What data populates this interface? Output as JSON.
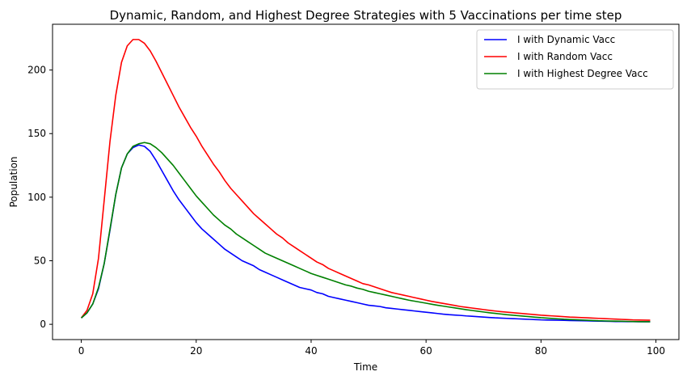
{
  "chart_data": {
    "type": "line",
    "title": "Dynamic, Random, and Highest Degree Strategies with 5 Vaccinations per time step",
    "xlabel": "Time",
    "ylabel": "Population",
    "xlim": [
      -5,
      104
    ],
    "ylim": [
      -12,
      236
    ],
    "xticks": [
      0,
      20,
      40,
      60,
      80,
      100
    ],
    "yticks": [
      0,
      50,
      100,
      150,
      200
    ],
    "grid": false,
    "legend_position": "top-right",
    "x": [
      0,
      1,
      2,
      3,
      4,
      5,
      6,
      7,
      8,
      9,
      10,
      11,
      12,
      13,
      14,
      15,
      16,
      17,
      18,
      19,
      20,
      21,
      22,
      23,
      24,
      25,
      26,
      27,
      28,
      29,
      30,
      31,
      32,
      33,
      34,
      35,
      36,
      37,
      38,
      39,
      40,
      41,
      42,
      43,
      44,
      45,
      46,
      47,
      48,
      49,
      50,
      51,
      52,
      53,
      54,
      55,
      56,
      57,
      58,
      59,
      60,
      61,
      62,
      63,
      64,
      65,
      66,
      67,
      68,
      69,
      70,
      71,
      72,
      73,
      74,
      75,
      76,
      77,
      78,
      79,
      80,
      81,
      82,
      83,
      84,
      85,
      86,
      87,
      88,
      89,
      90,
      91,
      92,
      93,
      94,
      95,
      96,
      97,
      98,
      99
    ],
    "series": [
      {
        "name": "I with Dynamic Vacc",
        "color": "#0000ff",
        "values": [
          5,
          9,
          16,
          28,
          48,
          74,
          102,
          123,
          134,
          139,
          141,
          140,
          136,
          129,
          121,
          113,
          105,
          98,
          92,
          86,
          80,
          75,
          71,
          67,
          63,
          59,
          56,
          53,
          50,
          48,
          46,
          43,
          41,
          39,
          37,
          35,
          33,
          31,
          29,
          28,
          27,
          25,
          24,
          22,
          21,
          20,
          19,
          18,
          17,
          16,
          15,
          14.5,
          14,
          13,
          12.5,
          12,
          11.5,
          11,
          10.5,
          10,
          9.5,
          9,
          8.5,
          8,
          7.6,
          7.3,
          7,
          6.6,
          6.3,
          6,
          5.7,
          5.4,
          5.1,
          4.9,
          4.7,
          4.5,
          4.3,
          4.1,
          3.9,
          3.7,
          3.5,
          3.4,
          3.3,
          3.2,
          3.1,
          3,
          2.9,
          2.8,
          2.7,
          2.6,
          2.5,
          2.4,
          2.3,
          2.2,
          2.2,
          2.1,
          2.1,
          2,
          2,
          2
        ]
      },
      {
        "name": "I with Random Vacc",
        "color": "#ff0000",
        "values": [
          5,
          11,
          24,
          52,
          98,
          144,
          180,
          206,
          219,
          224,
          224,
          221,
          215,
          207,
          198,
          189,
          180,
          171,
          163,
          155,
          148,
          140,
          133,
          126,
          120,
          113,
          107,
          102,
          97,
          92,
          87,
          83,
          79,
          75,
          71,
          68,
          64,
          61,
          58,
          55,
          52,
          49,
          47,
          44,
          42,
          40,
          38,
          36,
          34,
          32,
          31,
          29.5,
          28,
          26.5,
          25,
          24,
          23,
          22,
          21,
          20,
          19,
          18,
          17.2,
          16.4,
          15.6,
          14.8,
          14,
          13.4,
          12.8,
          12.2,
          11.6,
          11,
          10.5,
          10,
          9.6,
          9.2,
          8.8,
          8.4,
          8,
          7.6,
          7.2,
          6.9,
          6.6,
          6.3,
          6,
          5.7,
          5.5,
          5.3,
          5.1,
          4.9,
          4.7,
          4.5,
          4.3,
          4.1,
          3.9,
          3.7,
          3.5,
          3.4,
          3.3,
          3.2
        ]
      },
      {
        "name": "I with Highest Degree Vacc",
        "color": "#008000",
        "values": [
          5,
          9,
          16,
          29,
          48,
          75,
          102,
          123,
          134,
          140,
          142,
          143,
          142,
          139,
          135,
          130,
          125,
          119,
          113,
          107,
          101,
          96,
          91,
          86,
          82,
          78,
          75,
          71,
          68,
          65,
          62,
          59,
          56,
          54,
          52,
          50,
          48,
          46,
          44,
          42,
          40,
          38.5,
          37,
          35.5,
          34,
          32.5,
          31,
          30,
          28.5,
          27.5,
          26,
          25,
          24,
          23,
          22,
          21,
          20,
          19,
          18.2,
          17.4,
          16.6,
          15.8,
          15,
          14.3,
          13.6,
          12.9,
          12.2,
          11.5,
          10.9,
          10.3,
          9.7,
          9.1,
          8.6,
          8.1,
          7.6,
          7.2,
          6.8,
          6.4,
          6,
          5.6,
          5.2,
          4.9,
          4.6,
          4.3,
          4,
          3.8,
          3.6,
          3.4,
          3.2,
          3,
          2.8,
          2.7,
          2.6,
          2.5,
          2.4,
          2.3,
          2.2,
          2.1,
          2,
          2
        ]
      }
    ]
  }
}
